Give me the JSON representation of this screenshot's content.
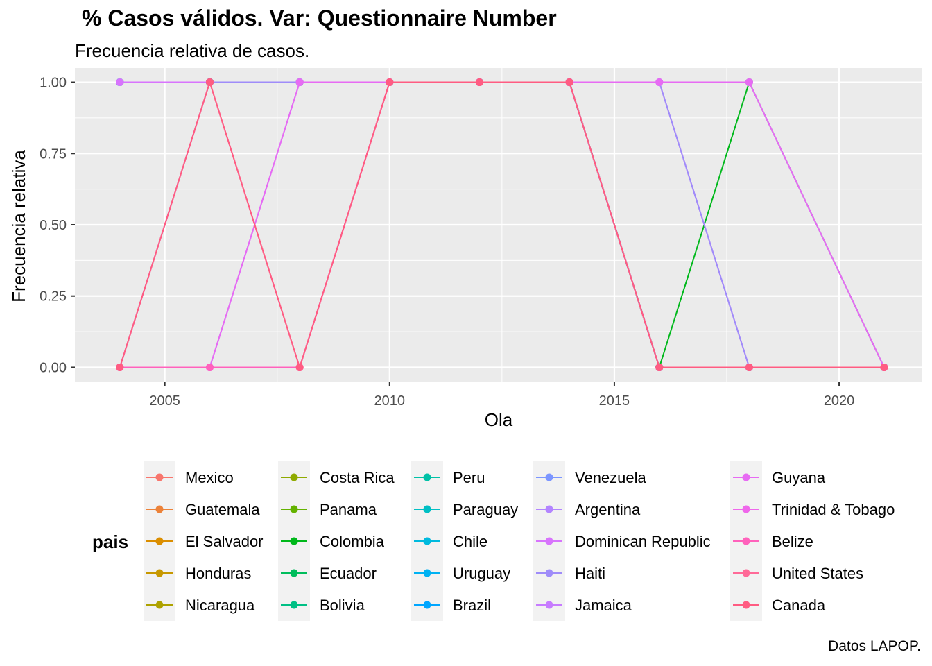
{
  "title": "% Casos válidos. Var: Questionnaire Number",
  "subtitle": "Frecuencia relativa de casos.",
  "caption": "Datos LAPOP.",
  "chart_data": {
    "type": "line",
    "xlabel": "Ola",
    "ylabel": "Frecuencia relativa",
    "xlim": [
      2003.0,
      2021.85
    ],
    "ylim": [
      -0.05,
      1.05
    ],
    "x_ticks": [
      2005,
      2010,
      2015,
      2020
    ],
    "x_tick_labels": [
      "2005",
      "2010",
      "2015",
      "2020"
    ],
    "y_ticks": [
      0,
      0.25,
      0.5,
      0.75,
      1.0
    ],
    "y_tick_labels": [
      "0.00",
      "0.25",
      "0.50",
      "0.75",
      "1.00"
    ],
    "grid": true,
    "legend_title": "pais",
    "legend_position": "bottom",
    "x": [
      2004,
      2006,
      2008,
      2010,
      2012,
      2014,
      2016,
      2018,
      2021
    ],
    "series": [
      {
        "name": "Mexico",
        "color": "#F8766D",
        "values": [
          1,
          1,
          1,
          1,
          1,
          1,
          0,
          0,
          0
        ]
      },
      {
        "name": "Guatemala",
        "color": "#EC8239",
        "values": [
          1,
          1,
          1,
          1,
          1,
          1,
          0,
          0,
          0
        ]
      },
      {
        "name": "El Salvador",
        "color": "#DB8E00",
        "values": [
          1,
          1,
          1,
          1,
          1,
          1,
          0,
          0,
          0
        ]
      },
      {
        "name": "Honduras",
        "color": "#C79800",
        "values": [
          1,
          1,
          1,
          1,
          1,
          1,
          0,
          0,
          0
        ]
      },
      {
        "name": "Nicaragua",
        "color": "#AEA200",
        "values": [
          1,
          1,
          1,
          1,
          1,
          1,
          0,
          0,
          0
        ]
      },
      {
        "name": "Costa Rica",
        "color": "#8FAA00",
        "values": [
          1,
          1,
          1,
          1,
          1,
          1,
          0,
          0,
          0
        ]
      },
      {
        "name": "Panama",
        "color": "#64B200",
        "values": [
          1,
          1,
          1,
          1,
          1,
          1,
          0,
          0,
          0
        ]
      },
      {
        "name": "Colombia",
        "color": "#00B81B",
        "values": [
          1,
          1,
          1,
          1,
          1,
          1,
          0,
          1,
          0
        ]
      },
      {
        "name": "Ecuador",
        "color": "#00BD5C",
        "values": [
          1,
          1,
          1,
          1,
          1,
          1,
          0,
          0,
          0
        ]
      },
      {
        "name": "Bolivia",
        "color": "#00C085",
        "values": [
          1,
          1,
          1,
          1,
          1,
          1,
          0,
          0,
          0
        ]
      },
      {
        "name": "Peru",
        "color": "#00C1A7",
        "values": [
          1,
          1,
          1,
          1,
          1,
          1,
          0,
          0,
          0
        ]
      },
      {
        "name": "Paraguay",
        "color": "#00BFC4",
        "values": [
          1,
          1,
          1,
          1,
          1,
          1,
          0,
          0,
          0
        ]
      },
      {
        "name": "Chile",
        "color": "#00BADE",
        "values": [
          1,
          1,
          1,
          1,
          1,
          1,
          0,
          0,
          0
        ]
      },
      {
        "name": "Uruguay",
        "color": "#00B2F3",
        "values": [
          1,
          1,
          1,
          1,
          1,
          1,
          0,
          0,
          0
        ]
      },
      {
        "name": "Brazil",
        "color": "#00A6FF",
        "values": [
          1,
          1,
          1,
          1,
          1,
          1,
          0,
          0,
          0
        ]
      },
      {
        "name": "Venezuela",
        "color": "#7C96FF",
        "values": [
          1,
          1,
          1,
          1,
          1,
          1,
          0,
          0,
          0
        ]
      },
      {
        "name": "Argentina",
        "color": "#B385FF",
        "values": [
          1,
          1,
          1,
          1,
          1,
          1,
          0,
          0,
          0
        ]
      },
      {
        "name": "Dominican Republic",
        "color": "#D874FD",
        "values": [
          1,
          1,
          1,
          1,
          1,
          1,
          1,
          0,
          0
        ]
      },
      {
        "name": "Haiti",
        "color": "#9F8CF9",
        "values": [
          0,
          1,
          1,
          1,
          1,
          1,
          1,
          0,
          0
        ]
      },
      {
        "name": "Jamaica",
        "color": "#C77CFF",
        "values": [
          0,
          0,
          1,
          1,
          1,
          1,
          1,
          1,
          0
        ]
      },
      {
        "name": "Guyana",
        "color": "#E76BF3",
        "values": [
          0,
          0,
          1,
          1,
          1,
          1,
          1,
          1,
          0
        ]
      },
      {
        "name": "Trinidad & Tobago",
        "color": "#EF67EB",
        "values": [
          0,
          0,
          0,
          1,
          1,
          1,
          0,
          0,
          0
        ]
      },
      {
        "name": "Belize",
        "color": "#FF62BC",
        "values": [
          0,
          0,
          0,
          1,
          1,
          1,
          0,
          0,
          0
        ]
      },
      {
        "name": "United States",
        "color": "#FF6A98",
        "values": [
          0,
          1,
          0,
          1,
          1,
          1,
          0,
          0,
          0
        ]
      },
      {
        "name": "Canada",
        "color": "#FF5C82",
        "values": [
          0,
          1,
          0,
          1,
          1,
          1,
          0,
          0,
          0
        ]
      }
    ]
  }
}
